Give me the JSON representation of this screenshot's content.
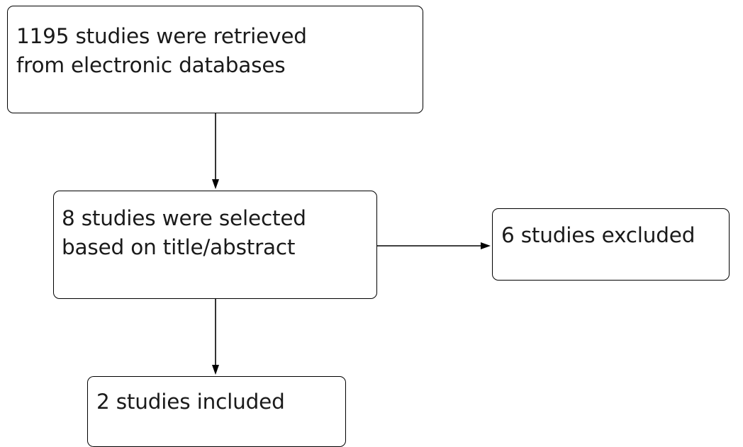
{
  "nodes": {
    "retrieved": {
      "lines": [
        "1195 studies were retrieved",
        "from electronic databases"
      ]
    },
    "selected": {
      "lines": [
        "8 studies were selected",
        "based on title/abstract"
      ]
    },
    "excluded": {
      "lines": [
        "6 studies excluded"
      ]
    },
    "included": {
      "lines": [
        "2 studies included"
      ]
    }
  },
  "edges": [
    {
      "from": "retrieved",
      "to": "selected"
    },
    {
      "from": "selected",
      "to": "excluded"
    },
    {
      "from": "selected",
      "to": "included"
    }
  ],
  "colors": {
    "stroke": "#000000",
    "text": "#1a1a1a",
    "background": "#ffffff"
  }
}
